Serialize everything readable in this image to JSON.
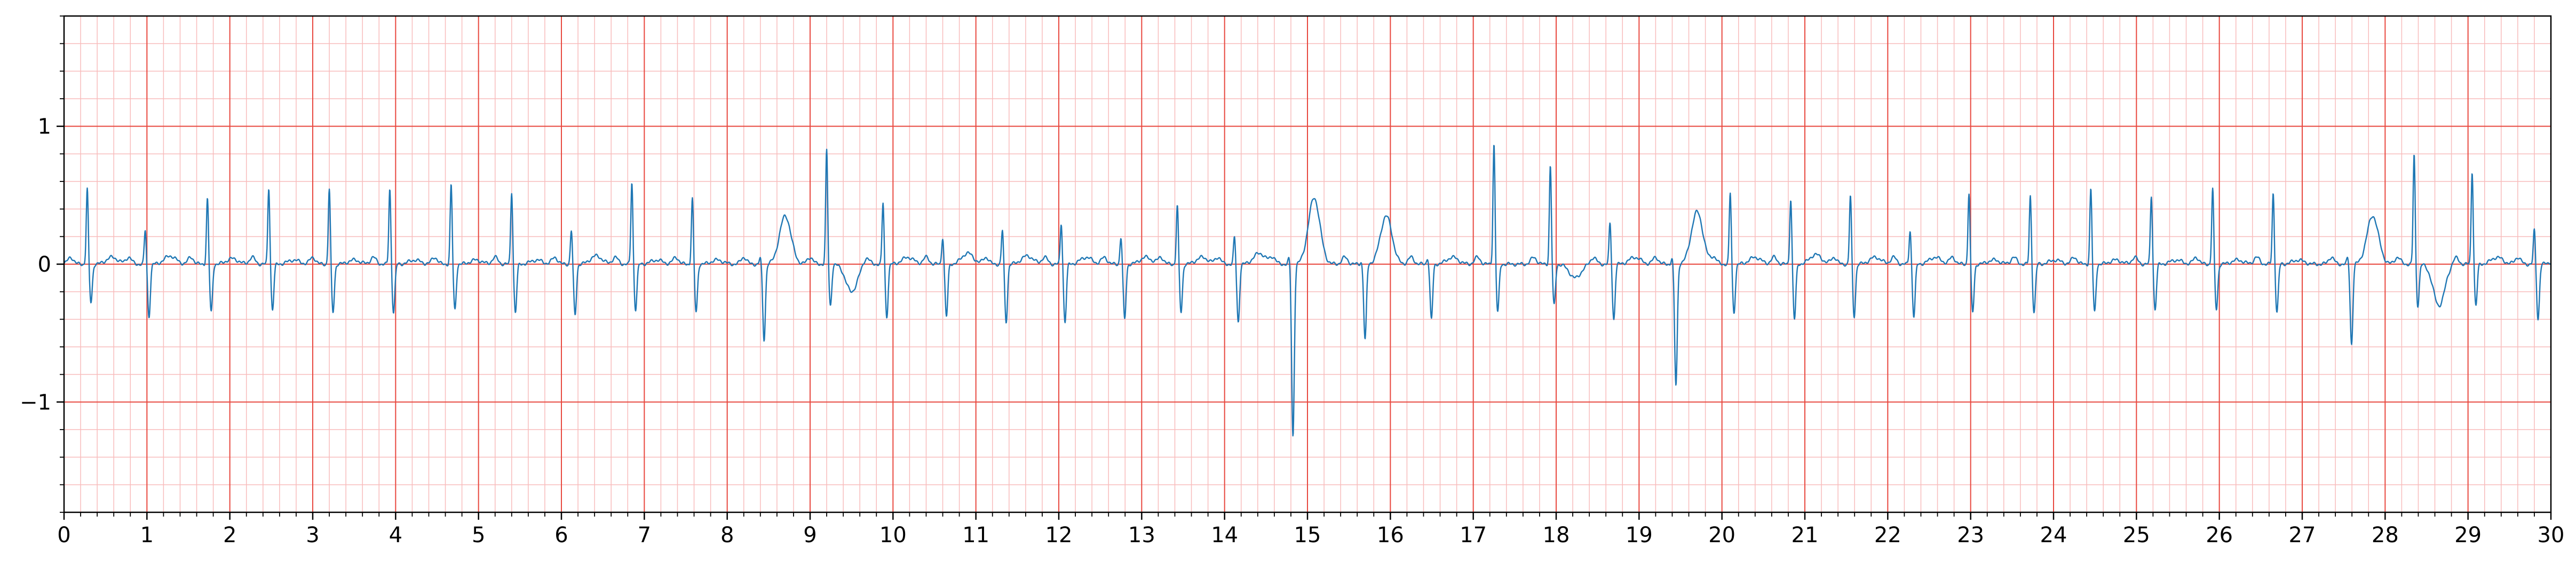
{
  "chart_data": {
    "type": "line",
    "title": "",
    "xlabel": "",
    "ylabel": "",
    "xlim": [
      0,
      30
    ],
    "ylim": [
      -1.8,
      1.8
    ],
    "x_ticks": [
      0,
      1,
      2,
      3,
      4,
      5,
      6,
      7,
      8,
      9,
      10,
      11,
      12,
      13,
      14,
      15,
      16,
      17,
      18,
      19,
      20,
      21,
      22,
      23,
      24,
      25,
      26,
      27,
      28,
      29,
      30
    ],
    "x_tick_labels": [
      "0",
      "1",
      "2",
      "3",
      "4",
      "5",
      "6",
      "7",
      "8",
      "9",
      "10",
      "11",
      "12",
      "13",
      "14",
      "15",
      "16",
      "17",
      "18",
      "19",
      "20",
      "21",
      "22",
      "23",
      "24",
      "25",
      "26",
      "27",
      "28",
      "29",
      "30"
    ],
    "y_ticks": [
      -1,
      0,
      1
    ],
    "y_tick_labels": [
      "−1",
      "0",
      "1"
    ],
    "x_major_grid_step": 1,
    "x_minor_grid_step": 0.2,
    "y_major_grid_step": 1,
    "y_minor_grid_step": 0.2,
    "grid": true,
    "legend": "none",
    "colors": {
      "trace": "#1f77b4",
      "major_grid": "#e8483f",
      "minor_grid": "#f8bcbc",
      "axes": "#000000"
    },
    "series": [
      {
        "beats": [
          {
            "t": 0.28,
            "r": 0.55,
            "s": -0.28,
            "t_wave": 0.05
          },
          {
            "t": 0.98,
            "r": 0.25,
            "s": -0.38,
            "t_wave": 0.06
          },
          {
            "t": 1.73,
            "r": 0.48,
            "s": -0.35,
            "t_wave": 0.04
          },
          {
            "t": 2.47,
            "r": 0.56,
            "s": -0.33,
            "t_wave": 0.03
          },
          {
            "t": 3.2,
            "r": 0.55,
            "s": -0.35,
            "t_wave": 0.03
          },
          {
            "t": 3.93,
            "r": 0.55,
            "s": -0.35,
            "t_wave": 0.03
          },
          {
            "t": 4.67,
            "r": 0.58,
            "s": -0.33,
            "t_wave": 0.03
          },
          {
            "t": 5.4,
            "r": 0.53,
            "s": -0.35,
            "t_wave": 0.03
          },
          {
            "t": 6.12,
            "r": 0.25,
            "s": -0.37,
            "t_wave": 0.06
          },
          {
            "t": 6.85,
            "r": 0.6,
            "s": -0.33,
            "t_wave": 0.03
          },
          {
            "t": 7.58,
            "r": 0.48,
            "s": -0.35,
            "t_wave": 0.03
          },
          {
            "t": 8.4,
            "r": 0.05,
            "s": -0.55,
            "t_wave": 0.35
          },
          {
            "t": 9.2,
            "r": 0.83,
            "s": -0.3,
            "t_wave": -0.2
          },
          {
            "t": 9.88,
            "r": 0.45,
            "s": -0.38,
            "t_wave": 0.05
          },
          {
            "t": 10.6,
            "r": 0.2,
            "s": -0.38,
            "t_wave": 0.08
          },
          {
            "t": 11.32,
            "r": 0.25,
            "s": -0.42,
            "t_wave": 0.06
          },
          {
            "t": 12.03,
            "r": 0.3,
            "s": -0.42,
            "t_wave": 0.05
          },
          {
            "t": 12.75,
            "r": 0.2,
            "s": -0.4,
            "t_wave": 0.05
          },
          {
            "t": 13.43,
            "r": 0.43,
            "s": -0.35,
            "t_wave": 0.05
          },
          {
            "t": 14.12,
            "r": 0.2,
            "s": -0.42,
            "t_wave": 0.08
          },
          {
            "t": 14.78,
            "r": 0.05,
            "s": -1.25,
            "t_wave": 0.48
          },
          {
            "t": 15.65,
            "r": 0.02,
            "s": -0.55,
            "t_wave": 0.35
          },
          {
            "t": 16.45,
            "r": 0.05,
            "s": -0.4,
            "t_wave": 0.05
          },
          {
            "t": 17.25,
            "r": 0.88,
            "s": -0.35,
            "t_wave": 0.0
          },
          {
            "t": 17.93,
            "r": 0.72,
            "s": -0.3,
            "t_wave": -0.1
          },
          {
            "t": 18.65,
            "r": 0.3,
            "s": -0.4,
            "t_wave": 0.05
          },
          {
            "t": 19.4,
            "r": 0.05,
            "s": -0.88,
            "t_wave": 0.38
          },
          {
            "t": 20.1,
            "r": 0.52,
            "s": -0.35,
            "t_wave": 0.05
          },
          {
            "t": 20.83,
            "r": 0.48,
            "s": -0.4,
            "t_wave": 0.07
          },
          {
            "t": 21.55,
            "r": 0.5,
            "s": -0.38,
            "t_wave": 0.05
          },
          {
            "t": 22.27,
            "r": 0.25,
            "s": -0.38,
            "t_wave": 0.05
          },
          {
            "t": 22.98,
            "r": 0.52,
            "s": -0.35,
            "t_wave": 0.03
          },
          {
            "t": 23.72,
            "r": 0.5,
            "s": -0.35,
            "t_wave": 0.03
          },
          {
            "t": 24.45,
            "r": 0.55,
            "s": -0.35,
            "t_wave": 0.03
          },
          {
            "t": 25.18,
            "r": 0.5,
            "s": -0.33,
            "t_wave": 0.03
          },
          {
            "t": 25.92,
            "r": 0.55,
            "s": -0.33,
            "t_wave": 0.03
          },
          {
            "t": 26.65,
            "r": 0.52,
            "s": -0.35,
            "t_wave": 0.03
          },
          {
            "t": 27.55,
            "r": 0.05,
            "s": -0.58,
            "t_wave": 0.35
          },
          {
            "t": 28.35,
            "r": 0.8,
            "s": -0.3,
            "t_wave": -0.3
          },
          {
            "t": 29.05,
            "r": 0.68,
            "s": -0.3,
            "t_wave": 0.05
          },
          {
            "t": 29.8,
            "r": 0.25,
            "s": -0.4,
            "t_wave": 0.05
          }
        ]
      }
    ]
  }
}
